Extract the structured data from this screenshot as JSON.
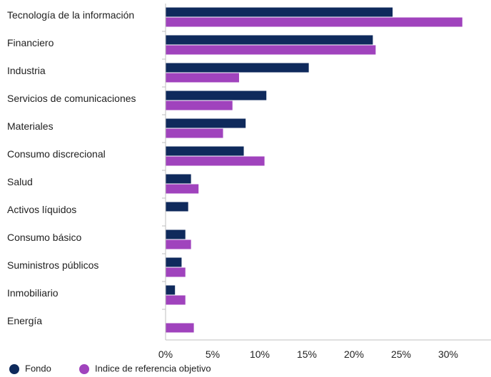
{
  "chart_data": {
    "type": "bar",
    "orientation": "horizontal",
    "categories": [
      "Tecnología de la información",
      "Financiero",
      "Industria",
      "Servicios de comunicaciones",
      "Materiales",
      "Consumo discrecional",
      "Salud",
      "Activos líquidos",
      "Consumo básico",
      "Suministros públicos",
      "Inmobiliario",
      "Energía"
    ],
    "series": [
      {
        "name": "Fondo",
        "color": "#0f2a5c",
        "values": [
          24.1,
          22.0,
          15.2,
          10.7,
          8.5,
          8.3,
          2.7,
          2.4,
          2.1,
          1.7,
          1.0,
          null
        ]
      },
      {
        "name": "Indice de referencia objetivo",
        "color": "#a043bd",
        "values": [
          31.5,
          22.3,
          7.8,
          7.1,
          6.1,
          10.5,
          3.5,
          null,
          2.7,
          2.1,
          2.1,
          3.0
        ]
      }
    ],
    "xlim": [
      0,
      35
    ],
    "xticks": [
      0,
      5,
      10,
      15,
      20,
      25,
      30
    ],
    "xtick_labels": [
      "0%",
      "5%",
      "10%",
      "15%",
      "20%",
      "25%",
      "30%"
    ],
    "grid": false,
    "legend_position": "bottom-left"
  }
}
